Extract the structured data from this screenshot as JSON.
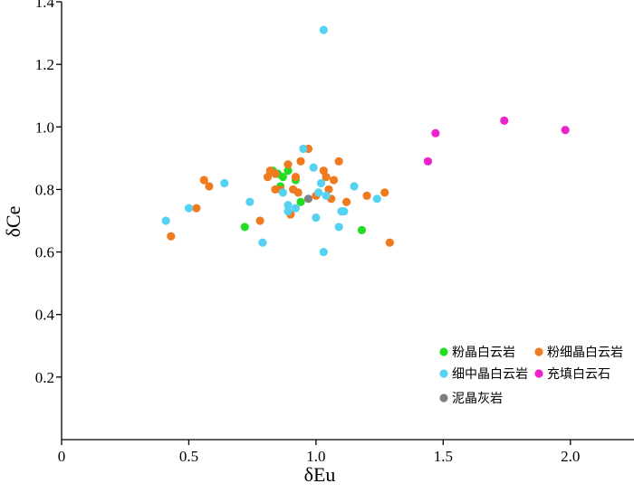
{
  "chart_data": {
    "type": "scatter",
    "title": "",
    "xlabel": "δEu",
    "ylabel": "δCe",
    "xlim": [
      0,
      2.25
    ],
    "ylim": [
      0,
      1.4
    ],
    "xticks": [
      0,
      0.5,
      1.0,
      1.5,
      2.0
    ],
    "xtick_labels": [
      "0",
      "0.5",
      "1.0",
      "1.5",
      "2.0"
    ],
    "yticks": [
      0.2,
      0.4,
      0.6,
      0.8,
      1.0,
      1.2,
      1.4
    ],
    "ytick_labels": [
      "0.2",
      "0.4",
      "0.6",
      "0.8",
      "1.0",
      "1.2",
      "1.4"
    ],
    "grid": false,
    "legend_position": "bottom-right",
    "series": [
      {
        "name": "粉晶白云岩",
        "color": "#22dd22",
        "points": [
          [
            0.72,
            0.68
          ],
          [
            0.83,
            0.86
          ],
          [
            0.85,
            0.85
          ],
          [
            0.86,
            0.81
          ],
          [
            0.87,
            0.84
          ],
          [
            0.89,
            0.86
          ],
          [
            0.92,
            0.83
          ],
          [
            0.94,
            0.76
          ],
          [
            1.18,
            0.67
          ]
        ]
      },
      {
        "name": "粉细晶白云岩",
        "color": "#f07a1e",
        "points": [
          [
            0.43,
            0.65
          ],
          [
            0.53,
            0.74
          ],
          [
            0.56,
            0.83
          ],
          [
            0.58,
            0.81
          ],
          [
            0.78,
            0.7
          ],
          [
            0.81,
            0.84
          ],
          [
            0.82,
            0.86
          ],
          [
            0.84,
            0.85
          ],
          [
            0.84,
            0.8
          ],
          [
            0.86,
            0.8
          ],
          [
            0.89,
            0.88
          ],
          [
            0.9,
            0.72
          ],
          [
            0.91,
            0.8
          ],
          [
            0.92,
            0.84
          ],
          [
            0.93,
            0.79
          ],
          [
            0.94,
            0.89
          ],
          [
            0.97,
            0.93
          ],
          [
            1.0,
            0.78
          ],
          [
            1.03,
            0.86
          ],
          [
            1.04,
            0.84
          ],
          [
            1.05,
            0.8
          ],
          [
            1.06,
            0.77
          ],
          [
            1.07,
            0.83
          ],
          [
            1.09,
            0.89
          ],
          [
            1.12,
            0.76
          ],
          [
            1.2,
            0.78
          ],
          [
            1.27,
            0.79
          ],
          [
            1.29,
            0.63
          ]
        ]
      },
      {
        "name": "细中晶白云岩",
        "color": "#55d2f2",
        "points": [
          [
            0.41,
            0.7
          ],
          [
            0.5,
            0.74
          ],
          [
            0.64,
            0.82
          ],
          [
            0.74,
            0.76
          ],
          [
            0.79,
            0.63
          ],
          [
            0.87,
            0.79
          ],
          [
            0.89,
            0.73
          ],
          [
            0.89,
            0.75
          ],
          [
            0.92,
            0.74
          ],
          [
            0.95,
            0.93
          ],
          [
            0.99,
            0.87
          ],
          [
            1.0,
            0.71
          ],
          [
            1.01,
            0.79
          ],
          [
            1.02,
            0.82
          ],
          [
            1.03,
            0.6
          ],
          [
            1.03,
            1.31
          ],
          [
            1.04,
            0.78
          ],
          [
            1.09,
            0.68
          ],
          [
            1.1,
            0.73
          ],
          [
            1.11,
            0.73
          ],
          [
            1.15,
            0.81
          ],
          [
            1.24,
            0.77
          ]
        ]
      },
      {
        "name": "充填白云石",
        "color": "#ee22cc",
        "points": [
          [
            1.44,
            0.89
          ],
          [
            1.47,
            0.98
          ],
          [
            1.74,
            1.02
          ],
          [
            1.98,
            0.99
          ]
        ]
      },
      {
        "name": "泥晶灰岩",
        "color": "#808080",
        "points": [
          [
            0.97,
            0.77
          ]
        ]
      }
    ]
  }
}
